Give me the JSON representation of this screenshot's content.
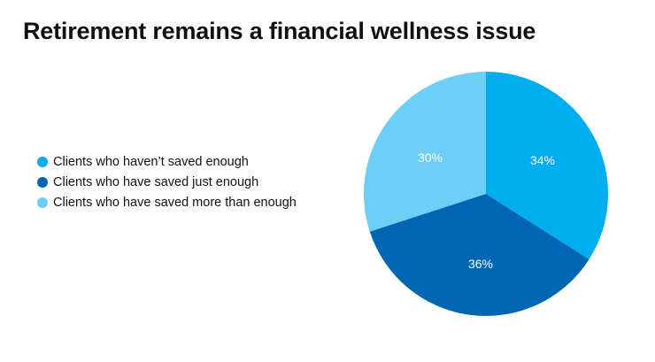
{
  "title": "Retirement remains a financial wellness issue",
  "legend": [
    {
      "label": "Clients who haven’t saved enough",
      "color": "#00AEEF"
    },
    {
      "label": "Clients who have saved just enough",
      "color": "#0066B3"
    },
    {
      "label": "Clients who have saved more than enough",
      "color": "#6DCFF6"
    }
  ],
  "slice_labels": [
    "34%",
    "36%",
    "30%"
  ],
  "chart_data": {
    "type": "pie",
    "title": "Retirement remains a financial wellness issue",
    "categories": [
      "Clients who haven’t saved enough",
      "Clients who have saved just enough",
      "Clients who have saved more than enough"
    ],
    "values": [
      34,
      36,
      30
    ],
    "colors": [
      "#00AEEF",
      "#0066B3",
      "#6DCFF6"
    ],
    "unit": "%",
    "start_angle": "12 o'clock, clockwise",
    "legend_position": "left"
  }
}
